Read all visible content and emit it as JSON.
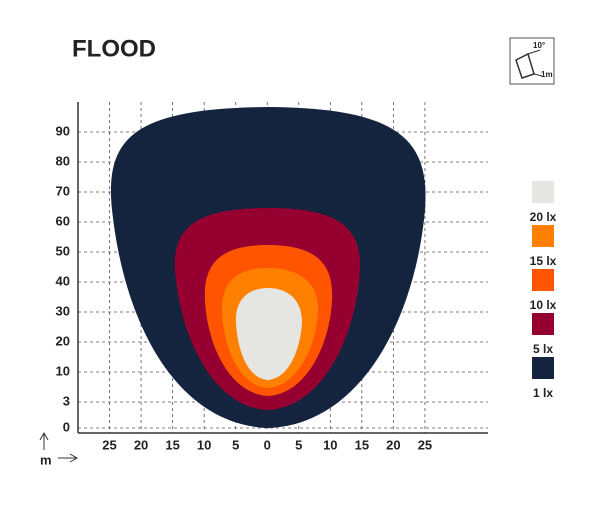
{
  "chart_data": {
    "type": "isolux",
    "title": "FLOOD",
    "icon": {
      "angle": "10°",
      "distance": "1m"
    },
    "axis_unit": "m",
    "xlim": [
      -30,
      35
    ],
    "xticks": [
      {
        "value": -25,
        "label": "25"
      },
      {
        "value": -20,
        "label": "20"
      },
      {
        "value": -15,
        "label": "15"
      },
      {
        "value": -10,
        "label": "10"
      },
      {
        "value": -5,
        "label": "5"
      },
      0,
      5,
      10,
      15,
      20,
      25
    ],
    "yticks": [
      0,
      3,
      10,
      20,
      30,
      40,
      50,
      60,
      70,
      80,
      90
    ],
    "grid": true,
    "series": [
      {
        "name": "1 lx",
        "color": "#14243f"
      },
      {
        "name": "5 lx",
        "color": "#960030"
      },
      {
        "name": "10 lx",
        "color": "#ff5500"
      },
      {
        "name": "15 lx",
        "color": "#ff8000"
      },
      {
        "name": "20 lx",
        "color": "#e5e5e1"
      }
    ]
  }
}
